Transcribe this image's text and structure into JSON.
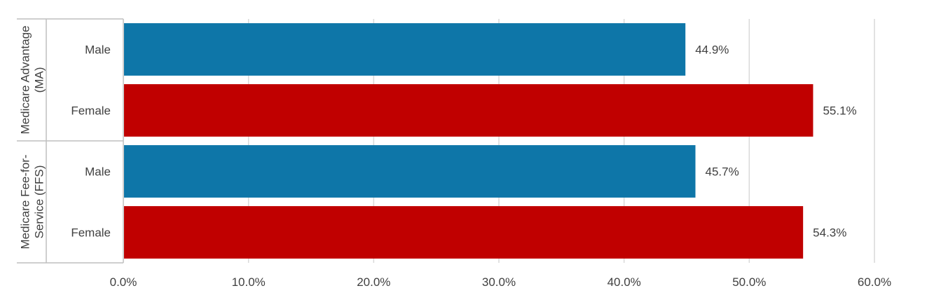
{
  "chart_data": {
    "type": "bar",
    "orientation": "horizontal",
    "xlim": [
      0,
      60
    ],
    "x_ticks": [
      "0.0%",
      "10.0%",
      "20.0%",
      "30.0%",
      "40.0%",
      "50.0%",
      "60.0%"
    ],
    "x_tick_values": [
      0,
      10,
      20,
      30,
      40,
      50,
      60
    ],
    "grid": true,
    "legend": "none",
    "groups": [
      {
        "label_lines": [
          "Medicare Advantage",
          "(MA)"
        ],
        "bars": [
          {
            "category": "Male",
            "value": 44.9,
            "label": "44.9%",
            "color": "#0E76A8"
          },
          {
            "category": "Female",
            "value": 55.1,
            "label": "55.1%",
            "color": "#C00000"
          }
        ]
      },
      {
        "label_lines": [
          "Medicare Fee-for-",
          "Service (FFS)"
        ],
        "bars": [
          {
            "category": "Male",
            "value": 45.7,
            "label": "45.7%",
            "color": "#0E76A8"
          },
          {
            "category": "Female",
            "value": 54.3,
            "label": "54.3%",
            "color": "#C00000"
          }
        ]
      }
    ]
  }
}
